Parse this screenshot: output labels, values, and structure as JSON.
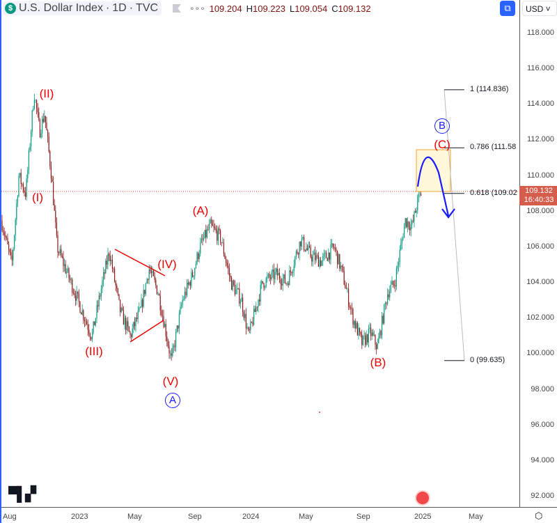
{
  "header": {
    "symbol": "U.S. Dollar Index",
    "sep1": "·",
    "interval": "1D",
    "sep2": "·",
    "source": "TVC",
    "logo": "$",
    "more": "∘∘∘",
    "ohlc": {
      "o_key": "O",
      "o": "109.204",
      "h_key": "H",
      "h": "109.223",
      "l_key": "L",
      "l": "109.054",
      "c_key": "C",
      "c": "109.132"
    },
    "currency": "USD",
    "auto_scale_icon": "⧉"
  },
  "price_axis": [
    "118.000",
    "116.000",
    "114.000",
    "112.000",
    "110.000",
    "108.000",
    "106.000",
    "104.000",
    "102.000",
    "100.000",
    "98.000",
    "96.000",
    "94.000",
    "92.000"
  ],
  "last_price": {
    "price": "109.132",
    "countdown": "16:40:33",
    "color": "#d65d4c"
  },
  "time_axis": [
    "Aug",
    "2023",
    "May",
    "Sep",
    "2024",
    "May",
    "Sep",
    "2025",
    "May"
  ],
  "fib_levels": [
    {
      "label": "1 (114.836)",
      "price": 114.836
    },
    {
      "label": "0.786 (111.58",
      "price": 111.58
    },
    {
      "label": "0.618 (109.02",
      "price": 109.02
    },
    {
      "label": "0 (99.635)",
      "price": 99.635
    }
  ],
  "wave_labels": {
    "I": "(I)",
    "II": "(II)",
    "III": "(III)",
    "IV": "(IV)",
    "V": "(V)",
    "A": "(A)",
    "B": "(B)",
    "C": "(C)",
    "circle_A": "A",
    "circle_B": "B"
  },
  "branding": {
    "logo": "17"
  },
  "colors": {
    "up": "#089981",
    "down": "#8b1a1a",
    "wave": "#e00000",
    "circle": "#1a1aff",
    "box": "#fff8d6"
  },
  "chart_data": {
    "type": "candlestick",
    "title": "U.S. Dollar Index · 1D · TVC",
    "ylim": [
      91,
      119
    ],
    "path_prices": [
      107.5,
      105,
      110,
      109,
      114.7,
      112.5,
      113.5,
      110,
      106,
      104,
      102,
      101,
      104,
      105.8,
      102.5,
      101,
      102.5,
      104.8,
      103.5,
      101.5,
      99.6,
      103,
      104.5,
      106,
      107.2,
      106.5,
      104,
      103,
      101,
      104,
      104.5,
      104,
      106.4,
      105.5,
      105.2,
      106,
      104.5,
      102,
      100.6,
      101.2,
      100.4,
      103.5,
      104,
      107.5,
      107.2,
      108.6,
      109.13
    ]
  }
}
